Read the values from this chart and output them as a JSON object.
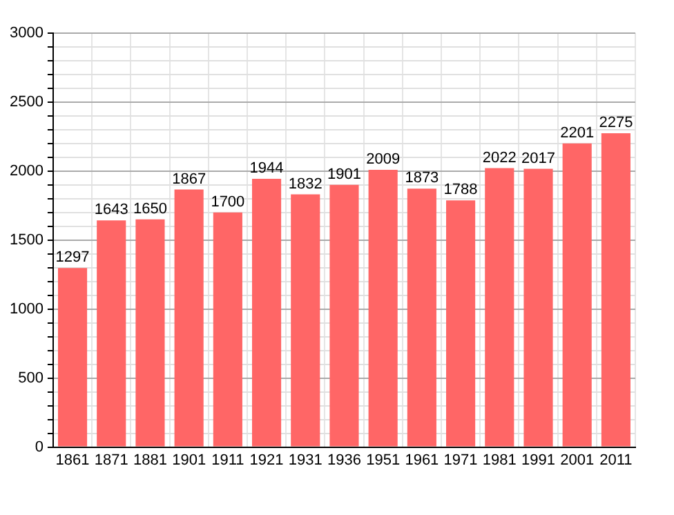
{
  "chart_data": {
    "type": "bar",
    "categories": [
      "1861",
      "1871",
      "1881",
      "1901",
      "1911",
      "1921",
      "1931",
      "1936",
      "1951",
      "1961",
      "1971",
      "1981",
      "1991",
      "2001",
      "2011"
    ],
    "values": [
      1297,
      1643,
      1650,
      1867,
      1700,
      1944,
      1832,
      1901,
      2009,
      1873,
      1788,
      2022,
      2017,
      2201,
      2275
    ],
    "color": "#ff6666",
    "ylim": [
      0,
      3000
    ],
    "yticks": [
      0,
      {
        "value": 100,
        "label": null
      },
      {
        "value": 200,
        "label": null
      },
      {
        "value": 300,
        "label": null
      },
      {
        "value": 400,
        "label": null
      },
      500,
      {
        "value": 600,
        "label": null
      },
      {
        "value": 700,
        "label": null
      },
      {
        "value": 800,
        "label": null
      },
      {
        "value": 900,
        "label": null
      },
      1000,
      {
        "value": 1100,
        "label": null
      },
      {
        "value": 1200,
        "label": null
      },
      {
        "value": 1300,
        "label": null
      },
      {
        "value": 1400,
        "label": null
      },
      1500,
      {
        "value": 1600,
        "label": null
      },
      {
        "value": 1700,
        "label": null
      },
      {
        "value": 1800,
        "label": null
      },
      {
        "value": 1900,
        "label": null
      },
      2000,
      {
        "value": 2100,
        "label": null
      },
      {
        "value": 2200,
        "label": null
      },
      {
        "value": 2300,
        "label": null
      },
      {
        "value": 2400,
        "label": null
      },
      2500,
      {
        "value": 2600,
        "label": null
      },
      {
        "value": 2700,
        "label": null
      },
      {
        "value": 2800,
        "label": null
      },
      {
        "value": 2900,
        "label": null
      },
      3000
    ],
    "grid": true,
    "data_labels": true
  }
}
